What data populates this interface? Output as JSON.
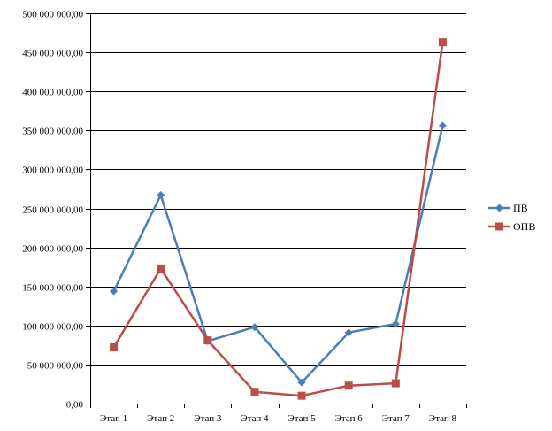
{
  "chart_data": {
    "type": "line",
    "title": "",
    "xlabel": "",
    "ylabel": "",
    "categories": [
      "Этап 1",
      "Этап 2",
      "Этап 3",
      "Этап 4",
      "Этап 5",
      "Этап 6",
      "Этап 7",
      "Этап 8"
    ],
    "ylim": [
      0,
      500000000
    ],
    "yticks": [
      0,
      50000000,
      100000000,
      150000000,
      200000000,
      250000000,
      300000000,
      350000000,
      400000000,
      450000000,
      500000000
    ],
    "ytick_labels": [
      "0,00",
      "50 000 000,00",
      "100 000 000,00",
      "150 000 000,00",
      "200 000 000,00",
      "250 000 000,00",
      "300 000 000,00",
      "350 000 000,00",
      "400 000 000,00",
      "450 000 000,00",
      "500 000 000,00"
    ],
    "grid": "horizontal",
    "legend_position": "right",
    "series": [
      {
        "name": "ПВ",
        "color": "#4a7ebb",
        "marker": "diamond",
        "values": [
          144000000,
          267000000,
          80000000,
          98000000,
          27000000,
          91000000,
          102000000,
          356000000
        ]
      },
      {
        "name": "ОПВ",
        "color": "#be4b48",
        "marker": "square",
        "values": [
          72000000,
          173000000,
          81000000,
          15000000,
          10000000,
          23000000,
          26000000,
          463000000
        ]
      }
    ]
  }
}
